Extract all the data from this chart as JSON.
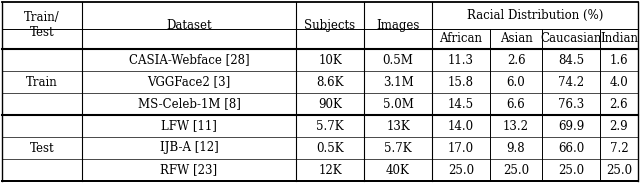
{
  "train_rows": [
    [
      "CASIA-Webface [28]",
      "10K",
      "0.5M",
      "11.3",
      "2.6",
      "84.5",
      "1.6"
    ],
    [
      "VGGFace2 [3]",
      "8.6K",
      "3.1M",
      "15.8",
      "6.0",
      "74.2",
      "4.0"
    ],
    [
      "MS-Celeb-1M [8]",
      "90K",
      "5.0M",
      "14.5",
      "6.6",
      "76.3",
      "2.6"
    ]
  ],
  "test_rows": [
    [
      "LFW [11]",
      "5.7K",
      "13K",
      "14.0",
      "13.2",
      "69.9",
      "2.9"
    ],
    [
      "IJB-A [12]",
      "0.5K",
      "5.7K",
      "17.0",
      "9.8",
      "66.0",
      "7.2"
    ],
    [
      "RFW [23]",
      "12K",
      "40K",
      "25.0",
      "25.0",
      "25.0",
      "25.0"
    ]
  ],
  "figsize": [
    6.4,
    1.83
  ],
  "dpi": 100,
  "font_size": 8.5,
  "bg_color": "#ffffff"
}
